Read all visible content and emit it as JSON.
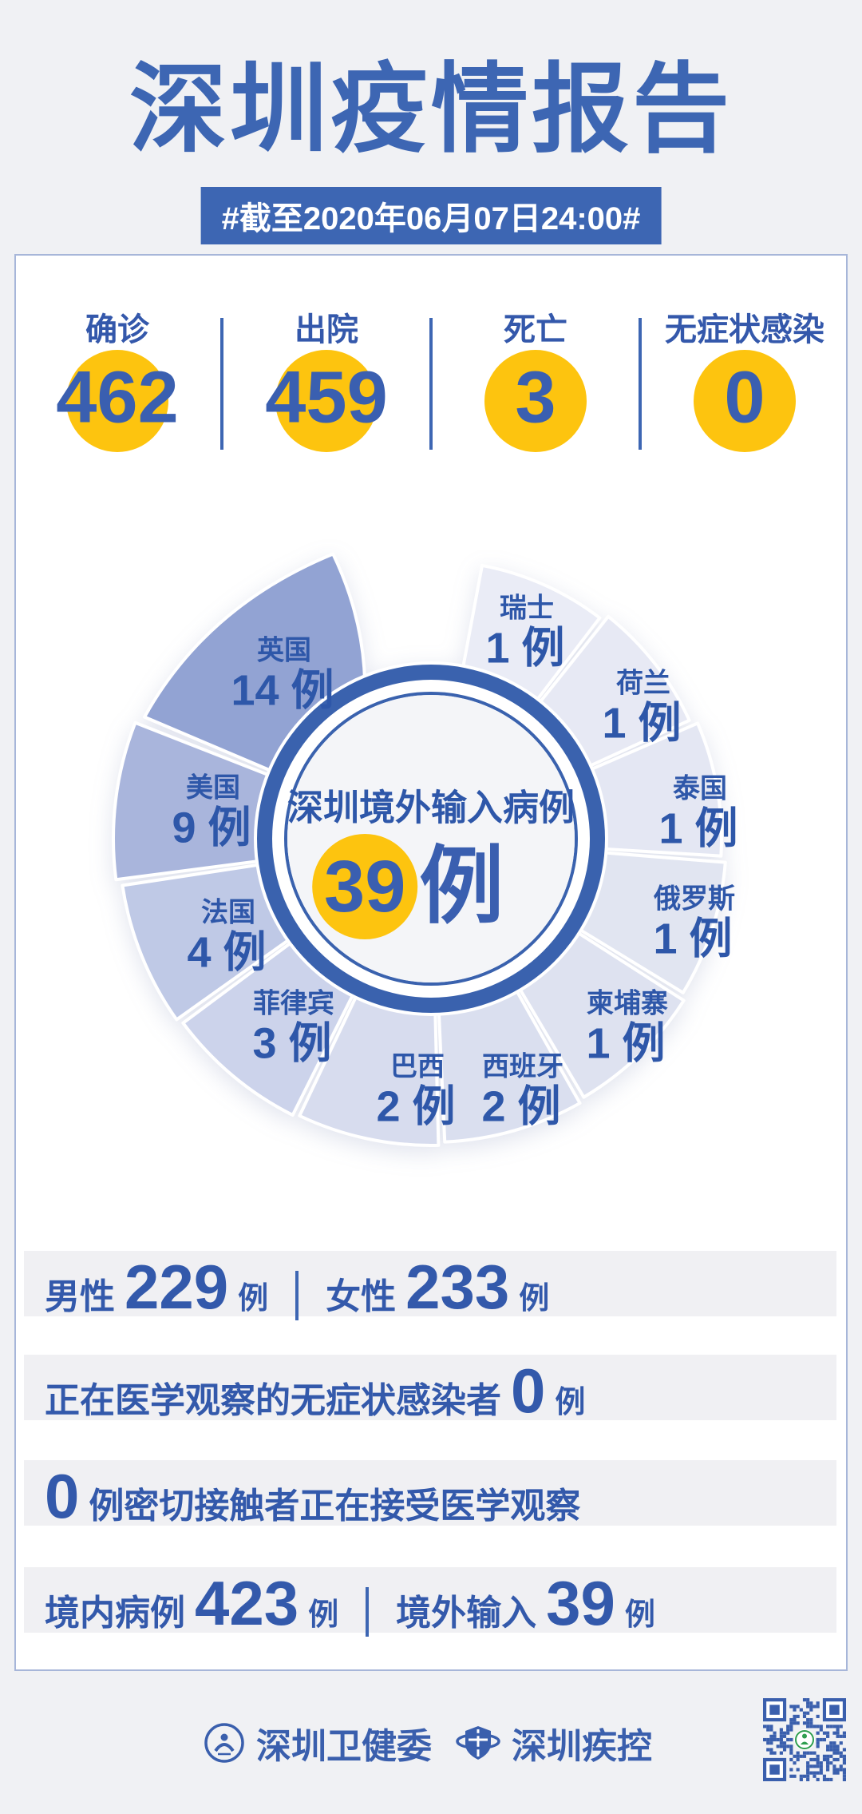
{
  "title": "深圳疫情报告",
  "badge": "#截至2020年06月07日24:00#",
  "colors": {
    "accent": "#3d66b3",
    "number_blue": "#3a5fb0",
    "label_blue": "#2e57a9",
    "yellow": "#fdc40f",
    "ring_blue": "#3a62ae",
    "card_border": "#a7b6d9",
    "bar_bg": "#f0f0f3",
    "page_bg": "#f0f1f4"
  },
  "summary_stats": [
    {
      "label": "确诊",
      "value": "462"
    },
    {
      "label": "出院",
      "value": "459"
    },
    {
      "label": "死亡",
      "value": "3"
    },
    {
      "label": "无症状感染",
      "value": "0"
    }
  ],
  "chart_data": {
    "type": "pie",
    "title": "深圳境外输入病例",
    "center_value": "39",
    "unit": "例",
    "total": 39,
    "legend_position": "around-segments",
    "center": [
      540,
      440
    ],
    "segments": [
      {
        "name": "瑞士",
        "value": 1,
        "color": "#eaecf6",
        "start": 10,
        "end": 38,
        "r": 348,
        "label": [
          660,
          758
        ]
      },
      {
        "name": "荷兰",
        "value": 1,
        "color": "#e7e9f4",
        "start": 38,
        "end": 66,
        "r": 356,
        "label": [
          806,
          852
        ]
      },
      {
        "name": "泰国",
        "value": 1,
        "color": "#e4e7f3",
        "start": 66,
        "end": 94,
        "r": 364,
        "label": [
          877,
          984
        ]
      },
      {
        "name": "俄罗斯",
        "value": 1,
        "color": "#e1e5f1",
        "start": 94,
        "end": 122,
        "r": 370,
        "label": [
          870,
          1122
        ]
      },
      {
        "name": "柬埔寨",
        "value": 1,
        "color": "#dee2f0",
        "start": 122,
        "end": 150,
        "r": 376,
        "label": [
          786,
          1253
        ]
      },
      {
        "name": "西班牙",
        "value": 2,
        "color": "#dadfef",
        "start": 150,
        "end": 178,
        "r": 380,
        "label": [
          655,
          1332
        ]
      },
      {
        "name": "巴西",
        "value": 2,
        "color": "#d7dcee",
        "start": 178,
        "end": 206,
        "r": 384,
        "label": [
          523,
          1332
        ]
      },
      {
        "name": "菲律宾",
        "value": 3,
        "color": "#ccd3eb",
        "start": 206,
        "end": 234,
        "r": 387,
        "label": [
          368,
          1253
        ]
      },
      {
        "name": "法国",
        "value": 4,
        "color": "#bfc9e6",
        "start": 234,
        "end": 262,
        "r": 391,
        "label": [
          286,
          1139
        ]
      },
      {
        "name": "美国",
        "value": 9,
        "color": "#a9b5dc",
        "start": 262,
        "end": 292,
        "r": 398,
        "label": [
          267,
          983
        ]
      },
      {
        "name": "英国",
        "value": 14,
        "color": "#92a3d3",
        "start": 292,
        "end": 337,
        "r": 398,
        "label": [
          356,
          811
        ],
        "petal": {
          "edge": [
            293,
            390
          ],
          "c1": [
            316,
            405
          ],
          "tip": [
            341,
            377
          ],
          "c2": [
            343,
            290
          ],
          "end": [
            337,
            212
          ]
        }
      }
    ]
  },
  "detail_bars": {
    "unit": "例",
    "male_label": "男性",
    "male_value": "229",
    "female_label": "女性",
    "female_value": "233",
    "asym_label": "正在医学观察的无症状感染者",
    "asym_value": "0",
    "close_value": "0",
    "close_label": "例密切接触者正在接受医学观察",
    "domestic_label": "境内病例",
    "domestic_value": "423",
    "imported_label": "境外输入",
    "imported_value": "39"
  },
  "footer": {
    "org1": "深圳卫健委",
    "org2": "深圳疾控",
    "qr_label": "qr-code"
  }
}
